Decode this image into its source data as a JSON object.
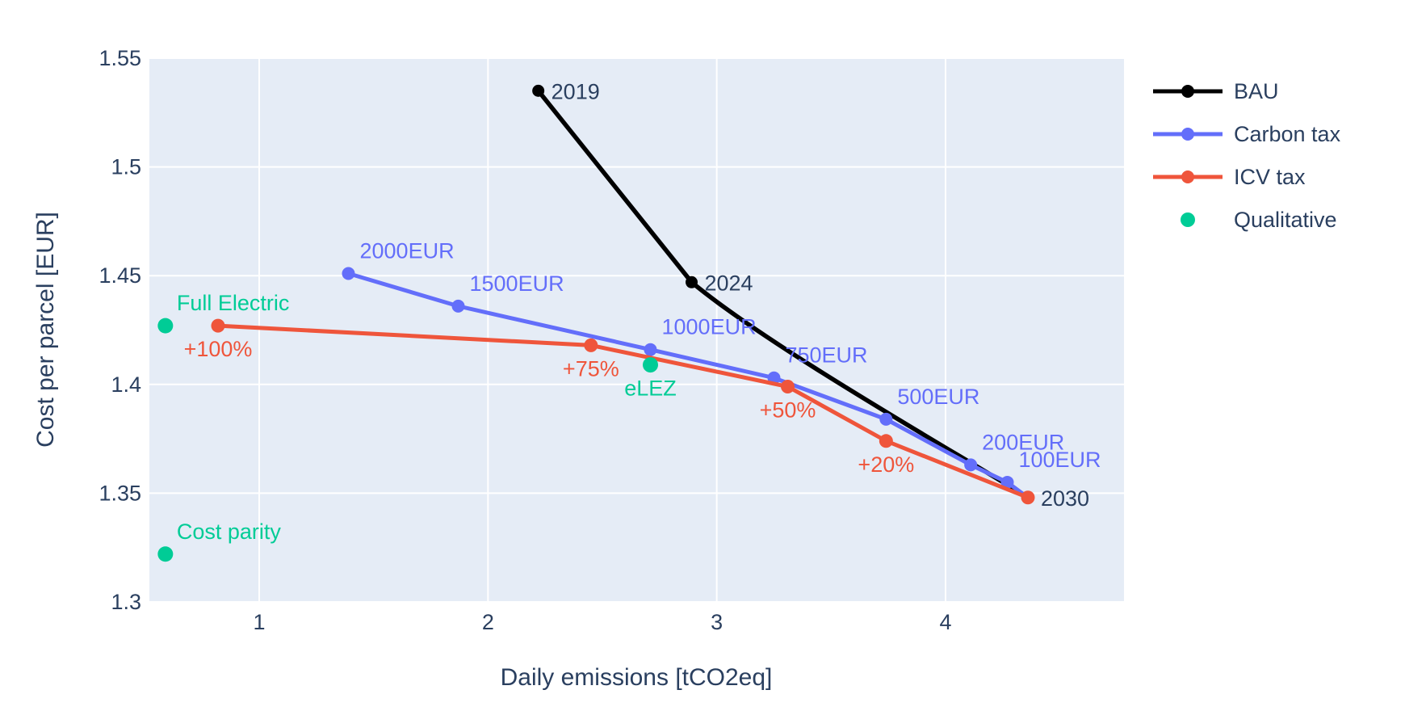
{
  "chart_data": {
    "type": "line",
    "title": "",
    "xlabel": "Daily emissions [tCO2eq]",
    "ylabel": "Cost per parcel [EUR]",
    "xlim": [
      0.52,
      4.78
    ],
    "ylim": [
      1.3,
      1.55
    ],
    "grid": true,
    "plot_bg": "#e5ecf6",
    "grid_color": "#ffffff",
    "text_color": "#2a3f5f",
    "legend_position": "right",
    "x_ticks": [
      {
        "v": 1,
        "label": "1"
      },
      {
        "v": 2,
        "label": "2"
      },
      {
        "v": 3,
        "label": "3"
      },
      {
        "v": 4,
        "label": "4"
      }
    ],
    "y_ticks": [
      {
        "v": 1.55,
        "label": "1.55"
      },
      {
        "v": 1.5,
        "label": "1.5"
      },
      {
        "v": 1.45,
        "label": "1.45"
      },
      {
        "v": 1.4,
        "label": "1.4"
      },
      {
        "v": 1.35,
        "label": "1.35"
      },
      {
        "v": 1.3,
        "label": "1.3"
      }
    ],
    "series": [
      {
        "name": "BAU",
        "color": "#000000",
        "label_color": "#2a3f5f",
        "mode": "lines+markers+text",
        "line_w": 5.5,
        "marker_r": 7.5,
        "smooth_last": true,
        "points": [
          {
            "x": 2.22,
            "y": 1.535,
            "label": "2019",
            "pos": "mr"
          },
          {
            "x": 2.89,
            "y": 1.447,
            "label": "2024",
            "pos": "mr"
          },
          {
            "x": 4.36,
            "y": 1.348,
            "label": "2030",
            "pos": "mr"
          }
        ]
      },
      {
        "name": "Carbon tax",
        "color": "#636efa",
        "label_color": "#636efa",
        "mode": "lines+markers+text",
        "line_w": 5,
        "marker_r": 8,
        "smooth_last": false,
        "points": [
          {
            "x": 1.39,
            "y": 1.451,
            "label": "2000EUR",
            "pos": "tr"
          },
          {
            "x": 1.87,
            "y": 1.436,
            "label": "1500EUR",
            "pos": "tr"
          },
          {
            "x": 2.71,
            "y": 1.416,
            "label": "1000EUR",
            "pos": "tr"
          },
          {
            "x": 3.25,
            "y": 1.403,
            "label": "750EUR",
            "pos": "tr"
          },
          {
            "x": 3.74,
            "y": 1.384,
            "label": "500EUR",
            "pos": "tr"
          },
          {
            "x": 4.11,
            "y": 1.363,
            "label": "200EUR",
            "pos": "tr"
          },
          {
            "x": 4.27,
            "y": 1.355,
            "label": "100EUR",
            "pos": "tr"
          },
          {
            "x": 4.36,
            "y": 1.348,
            "label": "",
            "pos": "tr"
          }
        ]
      },
      {
        "name": "ICV tax",
        "color": "#ef553b",
        "label_color": "#ef553b",
        "mode": "lines+markers+text",
        "line_w": 5,
        "marker_r": 8.5,
        "smooth_last": false,
        "points": [
          {
            "x": 0.82,
            "y": 1.427,
            "label": "+100%",
            "pos": "bc"
          },
          {
            "x": 2.45,
            "y": 1.418,
            "label": "+75%",
            "pos": "bc"
          },
          {
            "x": 3.31,
            "y": 1.399,
            "label": "+50%",
            "pos": "bc"
          },
          {
            "x": 3.74,
            "y": 1.374,
            "label": "+20%",
            "pos": "bc"
          },
          {
            "x": 4.36,
            "y": 1.348,
            "label": "",
            "pos": "bc"
          }
        ]
      },
      {
        "name": "Qualitative",
        "color": "#00cc96",
        "label_color": "#00cc96",
        "mode": "markers+text",
        "line_w": 0,
        "marker_r": 9.5,
        "smooth_last": false,
        "points": [
          {
            "x": 0.59,
            "y": 1.427,
            "label": "Full Electric",
            "pos": "tr"
          },
          {
            "x": 2.71,
            "y": 1.409,
            "label": "eLEZ",
            "pos": "bc"
          },
          {
            "x": 0.59,
            "y": 1.322,
            "label": "Cost parity",
            "pos": "tr"
          }
        ]
      }
    ],
    "legend": {
      "items": [
        {
          "label": "BAU",
          "color": "#000000",
          "style": "line-marker"
        },
        {
          "label": "Carbon tax",
          "color": "#636efa",
          "style": "line-marker"
        },
        {
          "label": "ICV tax",
          "color": "#ef553b",
          "style": "line-marker"
        },
        {
          "label": "Qualitative",
          "color": "#00cc96",
          "style": "marker"
        }
      ]
    }
  }
}
